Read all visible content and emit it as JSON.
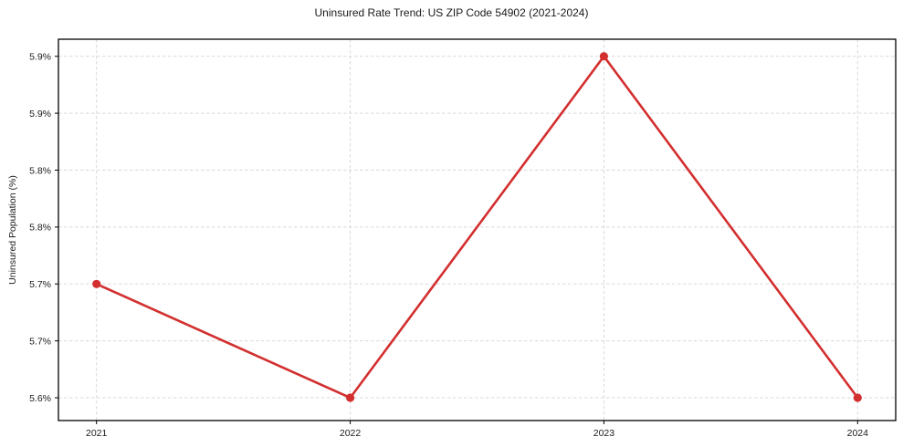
{
  "chart_data": {
    "type": "line",
    "title": "Uninsured Rate Trend: US ZIP Code 54902 (2021-2024)",
    "xlabel": "",
    "ylabel": "Uninsured Population (%)",
    "x": [
      2021,
      2022,
      2023,
      2024
    ],
    "series": [
      {
        "values": [
          5.7,
          5.6,
          5.9,
          5.6
        ],
        "color": "#d32f2f",
        "marker": "circle",
        "marker_radius": 4.6
      }
    ],
    "xticks": {
      "values": [
        2021,
        2022,
        2023,
        2024
      ],
      "labels": [
        "2021",
        "2022",
        "2023",
        "2024"
      ]
    },
    "yticks": {
      "values": [
        5.6,
        5.65,
        5.7,
        5.75,
        5.8,
        5.85,
        5.9
      ],
      "labels": [
        "5.6%",
        "5.7%",
        "5.7%",
        "5.8%",
        "5.8%",
        "5.9%",
        "5.9%"
      ]
    },
    "xlim": [
      2020.85,
      2024.15
    ],
    "ylim": [
      5.58,
      5.915
    ],
    "grid": {
      "show": true,
      "color": "#d9d9d9",
      "style": "dashed"
    },
    "legend": false,
    "background": "#ffffff",
    "frame_color": "#000000"
  }
}
